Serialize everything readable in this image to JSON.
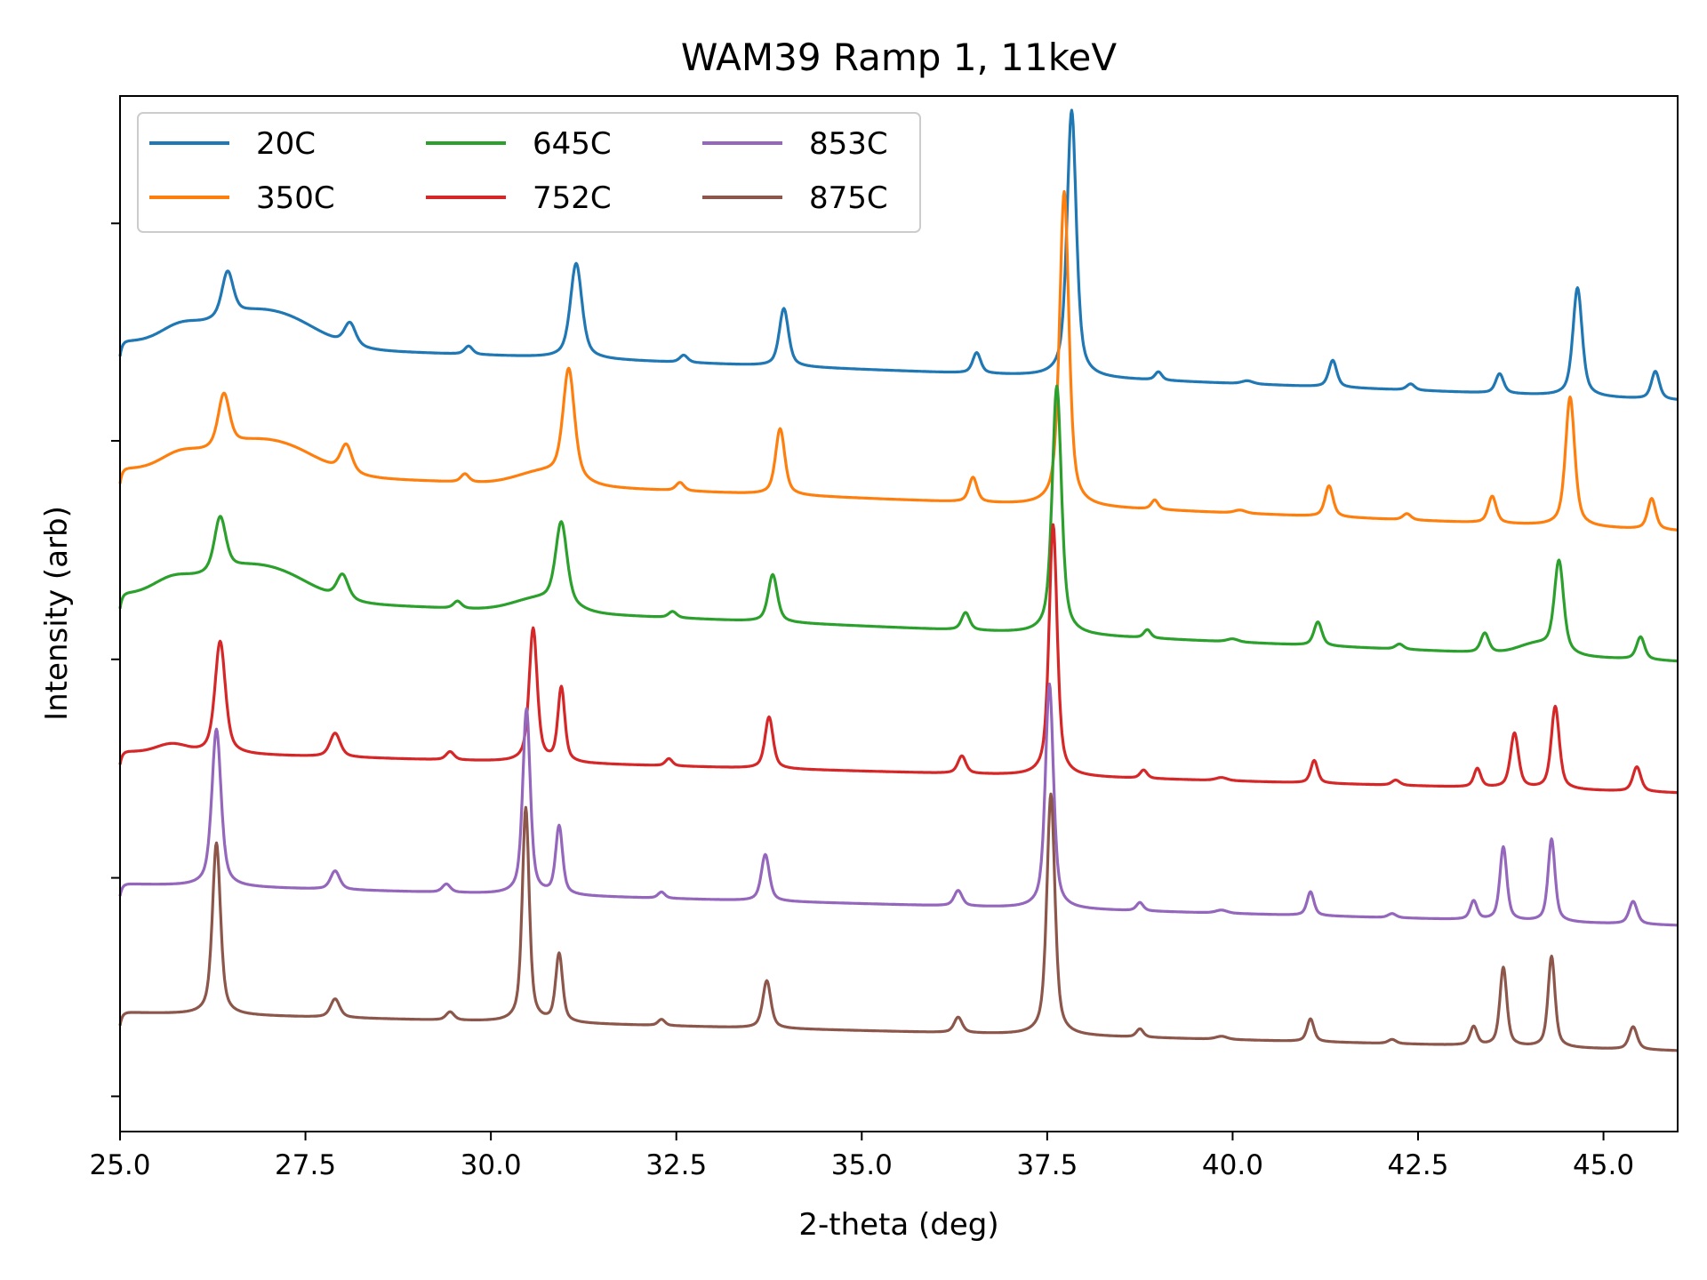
{
  "chart_data": {
    "type": "line",
    "title": "WAM39 Ramp 1, 11keV",
    "xlabel": "2-theta (deg)",
    "ylabel": "Intensity (arb)",
    "xlim": [
      25.0,
      46.0
    ],
    "ylim": [
      0,
      100
    ],
    "xticks": [
      25.0,
      27.5,
      30.0,
      32.5,
      35.0,
      37.5,
      40.0,
      42.5,
      45.0
    ],
    "xtick_labels": [
      "25.0",
      "27.5",
      "30.0",
      "32.5",
      "35.0",
      "37.5",
      "40.0",
      "42.5",
      "45.0"
    ],
    "yticks": [
      3.4,
      24.5,
      45.6,
      66.7,
      87.7
    ],
    "y_tick_labels_shown": false,
    "grid": false,
    "legend": {
      "position": "top-left",
      "columns": 3
    },
    "series": [
      {
        "name": "20C",
        "color": "#1f77b4",
        "offset": 70.6,
        "drift": 5.7,
        "lowstep": 1.5,
        "humps": [
          [
            25.8,
            1.2,
            0.25
          ],
          [
            26.8,
            3.2,
            0.6
          ],
          [
            27.4,
            0.8,
            0.4
          ]
        ],
        "peaks": [
          [
            26.45,
            4.4,
            0.1
          ],
          [
            28.1,
            2.2,
            0.1
          ],
          [
            29.7,
            0.8,
            0.07
          ],
          [
            31.15,
            9.2,
            0.1
          ],
          [
            32.6,
            0.7,
            0.07
          ],
          [
            33.95,
            5.6,
            0.08
          ],
          [
            36.55,
            2.0,
            0.07
          ],
          [
            37.83,
            25.8,
            0.08
          ],
          [
            39.0,
            0.8,
            0.06
          ],
          [
            40.2,
            0.3,
            0.1
          ],
          [
            41.35,
            2.6,
            0.07
          ],
          [
            42.4,
            0.6,
            0.07
          ],
          [
            43.6,
            1.9,
            0.07
          ],
          [
            44.65,
            10.5,
            0.08
          ],
          [
            45.7,
            2.7,
            0.07
          ]
        ]
      },
      {
        "name": "350C",
        "color": "#ff7f0e",
        "offset": 58.0,
        "drift": 6.0,
        "lowstep": 1.5,
        "humps": [
          [
            25.8,
            1.2,
            0.25
          ],
          [
            26.8,
            3.0,
            0.6
          ],
          [
            27.4,
            0.8,
            0.4
          ],
          [
            30.7,
            1.2,
            0.35
          ]
        ],
        "peaks": [
          [
            26.4,
            5.2,
            0.1
          ],
          [
            28.05,
            2.7,
            0.1
          ],
          [
            29.65,
            0.8,
            0.07
          ],
          [
            31.05,
            10.7,
            0.1
          ],
          [
            32.55,
            0.8,
            0.07
          ],
          [
            33.9,
            6.4,
            0.08
          ],
          [
            36.5,
            2.4,
            0.07
          ],
          [
            37.73,
            30.4,
            0.08
          ],
          [
            38.95,
            0.9,
            0.06
          ],
          [
            40.1,
            0.3,
            0.1
          ],
          [
            41.3,
            3.0,
            0.07
          ],
          [
            42.35,
            0.6,
            0.07
          ],
          [
            43.5,
            2.6,
            0.07
          ],
          [
            44.55,
            12.5,
            0.08
          ],
          [
            45.65,
            3.0,
            0.07
          ]
        ]
      },
      {
        "name": "645C",
        "color": "#2ca02c",
        "offset": 45.4,
        "drift": 6.5,
        "lowstep": 1.5,
        "humps": [
          [
            25.7,
            1.2,
            0.25
          ],
          [
            26.7,
            3.0,
            0.6
          ],
          [
            27.3,
            0.8,
            0.4
          ],
          [
            30.65,
            1.2,
            0.35
          ],
          [
            44.1,
            1.0,
            0.25
          ]
        ],
        "peaks": [
          [
            26.35,
            5.3,
            0.1
          ],
          [
            28.0,
            2.4,
            0.1
          ],
          [
            29.55,
            0.7,
            0.07
          ],
          [
            30.95,
            8.0,
            0.1
          ],
          [
            32.45,
            0.6,
            0.07
          ],
          [
            33.8,
            4.6,
            0.08
          ],
          [
            36.4,
            1.7,
            0.07
          ],
          [
            37.63,
            24.0,
            0.08
          ],
          [
            38.85,
            0.8,
            0.06
          ],
          [
            40.0,
            0.3,
            0.1
          ],
          [
            41.15,
            2.3,
            0.07
          ],
          [
            42.25,
            0.5,
            0.07
          ],
          [
            43.4,
            1.9,
            0.07
          ],
          [
            44.4,
            8.8,
            0.08
          ],
          [
            45.5,
            2.2,
            0.07
          ]
        ]
      },
      {
        "name": "752C",
        "color": "#d62728",
        "offset": 32.7,
        "drift": 4.0,
        "lowstep": 1.3,
        "humps": [
          [
            25.7,
            0.8,
            0.2
          ]
        ],
        "peaks": [
          [
            26.35,
            10.9,
            0.09
          ],
          [
            27.9,
            2.3,
            0.09
          ],
          [
            29.45,
            0.8,
            0.07
          ],
          [
            30.57,
            12.9,
            0.07
          ],
          [
            30.95,
            7.2,
            0.06
          ],
          [
            32.4,
            0.7,
            0.06
          ],
          [
            33.75,
            5.0,
            0.07
          ],
          [
            36.35,
            1.7,
            0.07
          ],
          [
            37.58,
            24.3,
            0.07
          ],
          [
            38.8,
            0.8,
            0.06
          ],
          [
            39.85,
            0.3,
            0.1
          ],
          [
            41.1,
            2.2,
            0.06
          ],
          [
            42.2,
            0.5,
            0.07
          ],
          [
            43.3,
            1.8,
            0.06
          ],
          [
            43.8,
            5.3,
            0.07
          ],
          [
            44.35,
            8.0,
            0.07
          ],
          [
            45.45,
            2.4,
            0.07
          ]
        ]
      },
      {
        "name": "853C",
        "color": "#9467bd",
        "offset": 19.9,
        "drift": 4.0,
        "lowstep": 1.2,
        "humps": [],
        "peaks": [
          [
            26.3,
            15.2,
            0.08
          ],
          [
            27.9,
            1.8,
            0.08
          ],
          [
            29.4,
            0.8,
            0.07
          ],
          [
            30.48,
            17.9,
            0.065
          ],
          [
            30.92,
            6.6,
            0.06
          ],
          [
            32.3,
            0.6,
            0.06
          ],
          [
            33.7,
            4.5,
            0.07
          ],
          [
            36.3,
            1.5,
            0.07
          ],
          [
            37.53,
            21.7,
            0.07
          ],
          [
            38.75,
            0.8,
            0.06
          ],
          [
            39.85,
            0.3,
            0.1
          ],
          [
            41.05,
            2.3,
            0.06
          ],
          [
            42.15,
            0.4,
            0.07
          ],
          [
            43.25,
            1.8,
            0.06
          ],
          [
            43.65,
            7.1,
            0.06
          ],
          [
            44.3,
            8.0,
            0.06
          ],
          [
            45.4,
            2.2,
            0.07
          ]
        ]
      },
      {
        "name": "875C",
        "color": "#8c564b",
        "offset": 7.8,
        "drift": 3.7,
        "lowstep": 1.3,
        "humps": [],
        "peaks": [
          [
            26.3,
            16.6,
            0.07
          ],
          [
            27.9,
            1.8,
            0.08
          ],
          [
            29.45,
            0.8,
            0.07
          ],
          [
            30.47,
            20.7,
            0.06
          ],
          [
            30.92,
            6.6,
            0.06
          ],
          [
            32.3,
            0.6,
            0.06
          ],
          [
            33.72,
            4.6,
            0.07
          ],
          [
            36.3,
            1.5,
            0.07
          ],
          [
            37.55,
            23.3,
            0.07
          ],
          [
            38.75,
            0.8,
            0.06
          ],
          [
            39.85,
            0.3,
            0.1
          ],
          [
            41.05,
            2.2,
            0.06
          ],
          [
            42.15,
            0.4,
            0.07
          ],
          [
            43.25,
            1.8,
            0.06
          ],
          [
            43.65,
            7.6,
            0.06
          ],
          [
            44.3,
            8.8,
            0.06
          ],
          [
            45.4,
            2.2,
            0.07
          ]
        ]
      }
    ]
  }
}
